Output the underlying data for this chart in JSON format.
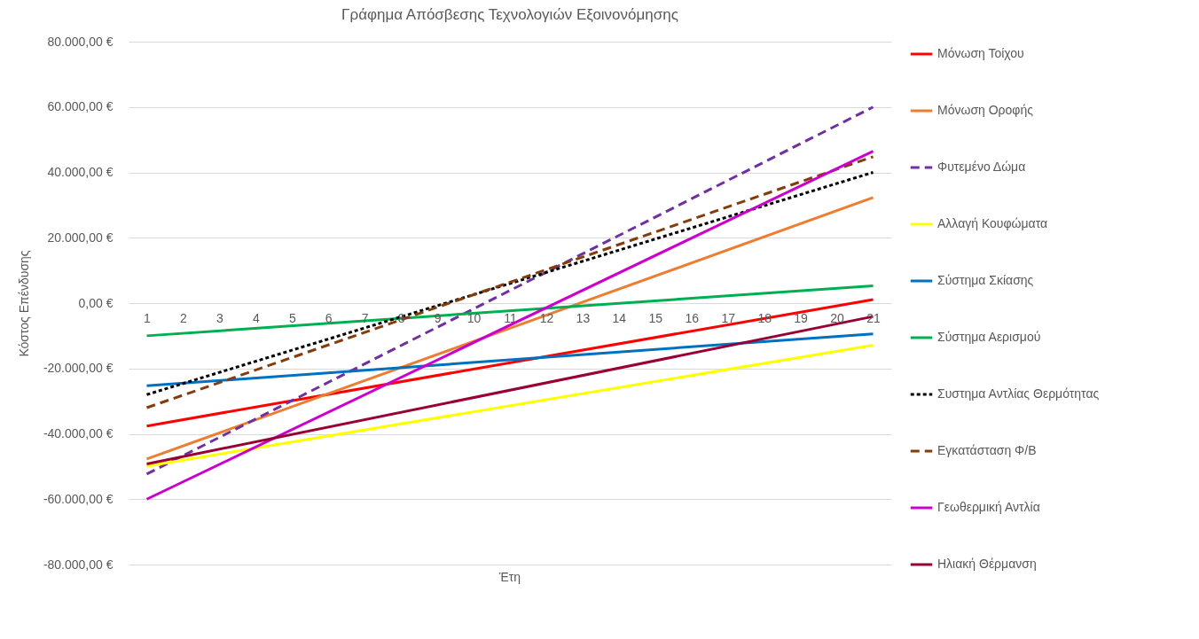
{
  "chart_data": {
    "type": "line",
    "title": "Γράφημα Απόσβεσης Τεχνολογιών Εξοινονόμησης",
    "xlabel": "Έτη",
    "ylabel": "Κόστος Επένδυσης",
    "xlim": [
      0.5,
      21.5
    ],
    "xticks": [
      1,
      2,
      3,
      4,
      5,
      6,
      7,
      8,
      9,
      10,
      11,
      12,
      13,
      14,
      15,
      16,
      17,
      18,
      19,
      20,
      21
    ],
    "ylim": [
      -80000,
      80000
    ],
    "yticks": [
      {
        "value": -80000,
        "label": "-80.000,00 €"
      },
      {
        "value": -60000,
        "label": "-60.000,00 €"
      },
      {
        "value": -40000,
        "label": "-40.000,00 €"
      },
      {
        "value": -20000,
        "label": "-20.000,00 €"
      },
      {
        "value": 0,
        "label": "0,00 €"
      },
      {
        "value": 20000,
        "label": "20.000,00 €"
      },
      {
        "value": 40000,
        "label": "40.000,00 €"
      },
      {
        "value": 60000,
        "label": "60.000,00 €"
      },
      {
        "value": 80000,
        "label": "80.000,00 €"
      }
    ],
    "x": [
      1,
      21
    ],
    "grid": "y",
    "legend": "right",
    "marker": "none",
    "series": [
      {
        "name": "Μόνωση Τοίχου",
        "color": "#ff0000",
        "line_style": "solid",
        "values": [
          -37600,
          1100
        ]
      },
      {
        "name": "Μόνωση Οροφής",
        "color": "#ed7d31",
        "line_style": "solid",
        "values": [
          -47700,
          32300
        ]
      },
      {
        "name": "Φυτεμένο Δώμα",
        "color": "#7030a0",
        "line_style": "dashed",
        "values": [
          -52300,
          60000
        ]
      },
      {
        "name": "Αλλαγή Κουφώματα",
        "color": "#ffff00",
        "line_style": "solid",
        "values": [
          -49900,
          -12900
        ]
      },
      {
        "name": "Σύστημα Σκίασης",
        "color": "#0070c0",
        "line_style": "solid",
        "values": [
          -25300,
          -9400
        ]
      },
      {
        "name": "Σύστημα Αερισμού",
        "color": "#00b050",
        "line_style": "solid",
        "values": [
          -10000,
          5300
        ]
      },
      {
        "name": "Συστημα Αντλίας Θερμότητας",
        "color": "#000000",
        "line_style": "dotted",
        "values": [
          -28000,
          40000
        ]
      },
      {
        "name": "Εγκατάσταση Φ/Β",
        "color": "#843c0c",
        "line_style": "dashed",
        "values": [
          -32000,
          44800
        ]
      },
      {
        "name": "Γεωθερμική Αντλία",
        "color": "#cc00cc",
        "line_style": "solid",
        "values": [
          -60000,
          46500
        ]
      },
      {
        "name": "Ηλιακή Θέρμανση",
        "color": "#990033",
        "line_style": "solid",
        "values": [
          -49200,
          -4100
        ]
      }
    ]
  }
}
